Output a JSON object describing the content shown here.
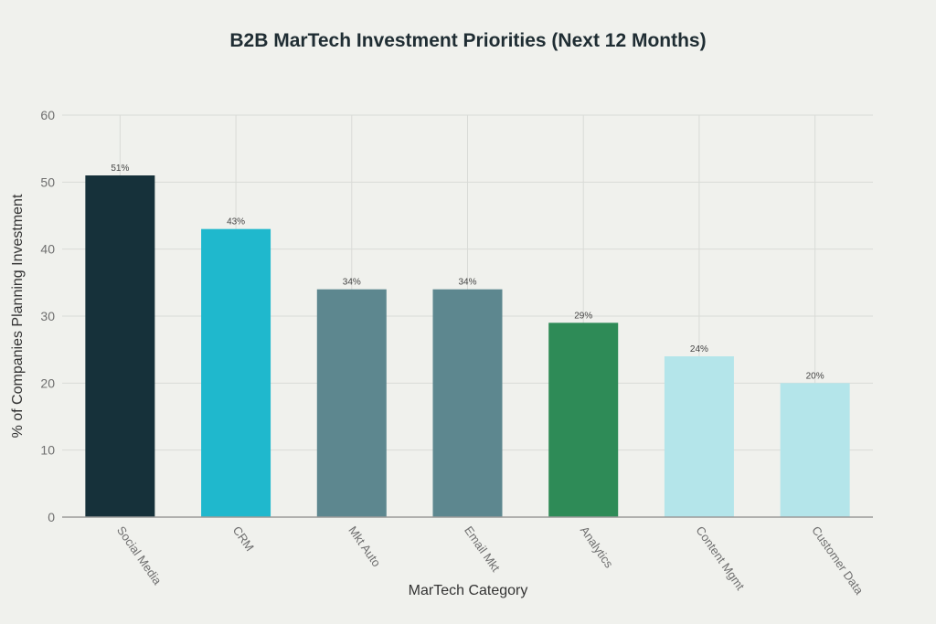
{
  "chart_data": {
    "type": "bar",
    "title": "B2B MarTech Investment Priorities (Next 12 Months)",
    "xlabel": "MarTech Category",
    "ylabel": "% of Companies Planning Investment",
    "categories": [
      "Social Media",
      "CRM",
      "Mkt Auto",
      "Email Mkt",
      "Analytics",
      "Content Mgmt",
      "Customer Data"
    ],
    "values": [
      51,
      43,
      34,
      34,
      29,
      24,
      20
    ],
    "data_labels": [
      "51%",
      "43%",
      "34%",
      "34%",
      "29%",
      "24%",
      "20%"
    ],
    "colors": [
      "#16313a",
      "#1fb8cd",
      "#5d878f",
      "#5d878f",
      "#2e8b57",
      "#b4e5ea",
      "#b4e5ea"
    ],
    "ylim": [
      0,
      60
    ],
    "yticks": [
      0,
      10,
      20,
      30,
      40,
      50,
      60
    ],
    "grid": true,
    "legend": "none"
  }
}
